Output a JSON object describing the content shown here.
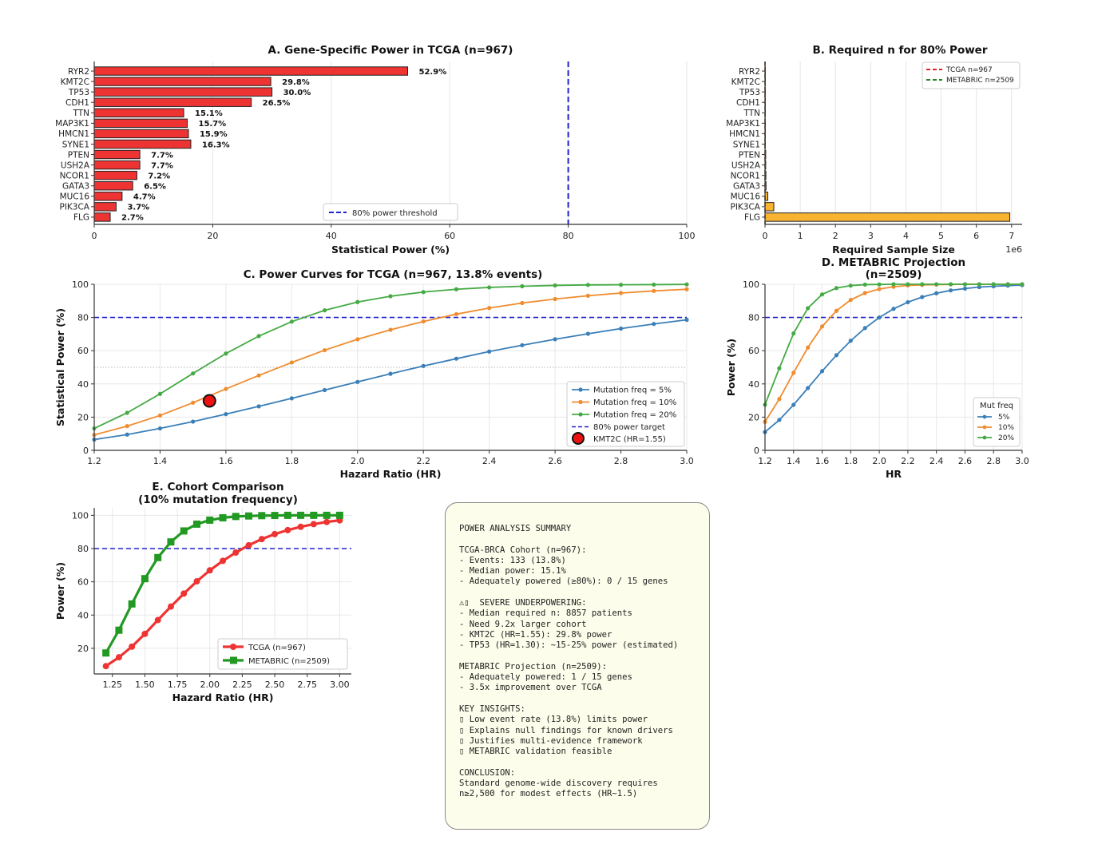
{
  "chart_data": [
    {
      "id": "A",
      "type": "bar",
      "orientation": "horizontal",
      "title": "A. Gene-Specific Power in TCGA (n=967)",
      "xlabel": "Statistical Power (%)",
      "ylabel": "",
      "xlim": [
        0,
        100
      ],
      "xticks": [
        "0",
        "20",
        "40",
        "60",
        "80",
        "100"
      ],
      "categories": [
        "RYR2",
        "KMT2C",
        "TP53",
        "CDH1",
        "TTN",
        "MAP3K1",
        "HMCN1",
        "SYNE1",
        "PTEN",
        "USH2A",
        "NCOR1",
        "GATA3",
        "MUC16",
        "PIK3CA",
        "FLG"
      ],
      "values": [
        52.9,
        29.8,
        30.0,
        26.5,
        15.1,
        15.7,
        15.9,
        16.3,
        7.7,
        7.7,
        7.2,
        6.5,
        4.7,
        3.7,
        2.7
      ],
      "value_labels": [
        "52.9%",
        "29.8%",
        "30.0%",
        "26.5%",
        "15.1%",
        "15.7%",
        "15.9%",
        "16.3%",
        "7.7%",
        "7.7%",
        "7.2%",
        "6.5%",
        "4.7%",
        "3.7%",
        "2.7%"
      ],
      "bar_color": "#ee3333",
      "reference_line": {
        "value": 80,
        "label": "80% power threshold",
        "color": "#2222cc"
      },
      "legend": {
        "entries": [
          "80% power threshold"
        ],
        "placement": "lower-center"
      },
      "grid": "x"
    },
    {
      "id": "B",
      "type": "bar",
      "orientation": "horizontal",
      "title": "B. Required n for 80% Power",
      "xlabel": "Required Sample Size",
      "x_scale_note": "1e6",
      "xlim": [
        0,
        7.3
      ],
      "xticks": [
        "0",
        "1",
        "2",
        "3",
        "4",
        "5",
        "6",
        "7"
      ],
      "categories": [
        "RYR2",
        "KMT2C",
        "TP53",
        "CDH1",
        "TTN",
        "MAP3K1",
        "HMCN1",
        "SYNE1",
        "PTEN",
        "USH2A",
        "NCOR1",
        "GATA3",
        "MUC16",
        "PIK3CA",
        "FLG"
      ],
      "values_millions": [
        0.002,
        0.005,
        0.005,
        0.006,
        0.009,
        0.009,
        0.009,
        0.009,
        0.02,
        0.02,
        0.025,
        0.03,
        0.08,
        0.25,
        6.95
      ],
      "bar_color": "#f8b431",
      "reference_lines": [
        {
          "value": 967,
          "label": "TCGA n=967",
          "color": "#dd2222"
        },
        {
          "value": 2509,
          "label": "METABRIC n=2509",
          "color": "#228822"
        }
      ],
      "legend": {
        "entries": [
          "TCGA n=967",
          "METABRIC n=2509"
        ],
        "placement": "top-right"
      },
      "grid": "x"
    },
    {
      "id": "C",
      "type": "line",
      "title": "C. Power Curves for TCGA (n=967, 13.8% events)",
      "xlabel": "Hazard Ratio (HR)",
      "ylabel": "Statistical Power (%)",
      "xlim": [
        1.2,
        3.0
      ],
      "ylim": [
        0,
        100
      ],
      "xticks": [
        "1.2",
        "1.4",
        "1.6",
        "1.8",
        "2.0",
        "2.2",
        "2.4",
        "2.6",
        "2.8",
        "3.0"
      ],
      "yticks": [
        "0",
        "20",
        "40",
        "60",
        "80",
        "100"
      ],
      "x": [
        1.2,
        1.3,
        1.4,
        1.5,
        1.6,
        1.7,
        1.8,
        1.9,
        2.0,
        2.1,
        2.2,
        2.3,
        2.4,
        2.5,
        2.6,
        2.7,
        2.8,
        2.9,
        3.0
      ],
      "series": [
        {
          "name": "Mutation freq = 5%",
          "color": "#3a7fb8",
          "values": [
            6.5,
            9.5,
            13.2,
            17.3,
            21.8,
            26.5,
            31.3,
            36.3,
            41.2,
            46.1,
            50.8,
            55.2,
            59.5,
            63.3,
            66.9,
            70.2,
            73.3,
            76.1,
            78.6
          ]
        },
        {
          "name": "Mutation freq = 10%",
          "color": "#f08c30",
          "values": [
            9.3,
            14.6,
            21.0,
            28.7,
            37.0,
            45.1,
            52.9,
            60.3,
            66.9,
            72.6,
            77.6,
            82.0,
            85.7,
            88.7,
            91.1,
            93.1,
            94.7,
            96.0,
            97.0
          ]
        },
        {
          "name": "Mutation freq = 20%",
          "color": "#44aa44",
          "values": [
            13.2,
            22.6,
            34.0,
            46.3,
            58.3,
            68.8,
            77.5,
            84.3,
            89.3,
            92.8,
            95.3,
            97.0,
            98.1,
            98.8,
            99.3,
            99.6,
            99.7,
            99.8,
            99.9
          ]
        }
      ],
      "reference_line": {
        "value": 80,
        "label": "80% power target",
        "color": "#2222cc"
      },
      "secondary_line": {
        "value": 50,
        "style": "dotted"
      },
      "highlight_point": {
        "label": "KMT2C (HR=1.55)",
        "x": 1.55,
        "y": 29.8,
        "color": "#ee1111"
      },
      "legend": {
        "entries": [
          "Mutation freq = 5%",
          "Mutation freq = 10%",
          "Mutation freq = 20%",
          "80% power target",
          "KMT2C (HR=1.55)"
        ],
        "placement": "lower-right"
      },
      "grid": true
    },
    {
      "id": "D",
      "type": "line",
      "title": "D. METABRIC Projection\n(n=2509)",
      "title_lines": [
        "D. METABRIC Projection",
        "(n=2509)"
      ],
      "xlabel": "HR",
      "ylabel": "Power (%)",
      "xlim": [
        1.2,
        3.0
      ],
      "ylim": [
        0,
        100
      ],
      "xticks": [
        "1.2",
        "1.4",
        "1.6",
        "1.8",
        "2.0",
        "2.2",
        "2.4",
        "2.6",
        "2.8",
        "3.0"
      ],
      "yticks": [
        "0",
        "20",
        "40",
        "60",
        "80",
        "100"
      ],
      "x": [
        1.2,
        1.3,
        1.4,
        1.5,
        1.6,
        1.7,
        1.8,
        1.9,
        2.0,
        2.1,
        2.2,
        2.3,
        2.4,
        2.5,
        2.6,
        2.7,
        2.8,
        2.9,
        3.0
      ],
      "series": [
        {
          "name": "5%",
          "color": "#3a7fb8",
          "values": [
            11.0,
            18.3,
            27.4,
            37.5,
            47.7,
            57.3,
            66.0,
            73.6,
            80.0,
            85.2,
            89.2,
            92.3,
            94.6,
            96.3,
            97.4,
            98.3,
            98.8,
            99.2,
            99.5
          ]
        },
        {
          "name": "10%",
          "color": "#f08c30",
          "values": [
            17.2,
            30.9,
            46.7,
            61.9,
            74.6,
            84.0,
            90.6,
            94.7,
            97.1,
            98.5,
            99.3,
            99.6,
            99.8,
            99.9,
            100,
            100,
            100,
            100,
            100
          ]
        },
        {
          "name": "20%",
          "color": "#44aa44",
          "values": [
            27.5,
            49.4,
            70.4,
            85.6,
            93.9,
            97.7,
            99.2,
            99.8,
            99.9,
            100,
            100,
            100,
            100,
            100,
            100,
            100,
            100,
            100,
            100
          ]
        }
      ],
      "reference_line": {
        "value": 80,
        "color": "#2222cc"
      },
      "legend": {
        "title": "Mut freq",
        "entries": [
          "5%",
          "10%",
          "20%"
        ],
        "placement": "lower-right"
      },
      "grid": true
    },
    {
      "id": "E",
      "type": "line",
      "title": "E. Cohort Comparison\n(10% mutation frequency)",
      "title_lines": [
        "E. Cohort Comparison",
        "(10% mutation frequency)"
      ],
      "xlabel": "Hazard Ratio (HR)",
      "ylabel": "Power (%)",
      "xlim": [
        1.11,
        3.09
      ],
      "ylim": [
        4.6,
        104.5
      ],
      "xticks": [
        "1.25",
        "1.50",
        "1.75",
        "2.00",
        "2.25",
        "2.50",
        "2.75",
        "3.00"
      ],
      "yticks": [
        "20",
        "40",
        "60",
        "80",
        "100"
      ],
      "x": [
        1.2,
        1.3,
        1.4,
        1.5,
        1.6,
        1.7,
        1.8,
        1.9,
        2.0,
        2.1,
        2.2,
        2.3,
        2.4,
        2.5,
        2.6,
        2.7,
        2.8,
        2.9,
        3.0
      ],
      "series": [
        {
          "name": "TCGA (n=967)",
          "color": "#ee3333",
          "marker": "circle",
          "values": [
            9.3,
            14.6,
            21.0,
            28.7,
            37.0,
            45.1,
            52.9,
            60.3,
            66.9,
            72.6,
            77.6,
            82.0,
            85.7,
            88.7,
            91.1,
            93.1,
            94.7,
            96.0,
            97.0
          ]
        },
        {
          "name": "METABRIC (n=2509)",
          "color": "#229922",
          "marker": "square",
          "values": [
            17.2,
            30.9,
            46.7,
            61.9,
            74.6,
            84.0,
            90.6,
            94.7,
            97.1,
            98.5,
            99.3,
            99.6,
            99.8,
            99.9,
            100,
            100,
            100,
            100,
            100
          ]
        }
      ],
      "reference_line": {
        "value": 80,
        "color": "#2222cc"
      },
      "legend": {
        "entries": [
          "TCGA (n=967)",
          "METABRIC (n=2509)"
        ],
        "placement": "lower-right"
      },
      "grid": true
    }
  ],
  "summary": {
    "lines": [
      "POWER ANALYSIS SUMMARY",
      "",
      "TCGA-BRCA Cohort (n=967):",
      "- Events: 133 (13.8%)",
      "- Median power: 15.1%",
      "- Adequately powered (≥80%): 0 / 15 genes",
      "",
      "⚠▯  SEVERE UNDERPOWERING:",
      "- Median required n: 8857 patients",
      "- Need 9.2x larger cohort",
      "- KMT2C (HR=1.55): 29.8% power",
      "- TP53 (HR=1.30): ~15-25% power (estimated)",
      "",
      "METABRIC Projection (n=2509):",
      "- Adequately powered: 1 / 15 genes",
      "- 3.5x improvement over TCGA",
      "",
      "KEY INSIGHTS:",
      "▯ Low event rate (13.8%) limits power",
      "▯ Explains null findings for known drivers",
      "▯ Justifies multi-evidence framework",
      "▯ METABRIC validation feasible",
      "",
      "CONCLUSION:",
      "Standard genome-wide discovery requires",
      "n≥2,500 for modest effects (HR~1.5)"
    ]
  }
}
